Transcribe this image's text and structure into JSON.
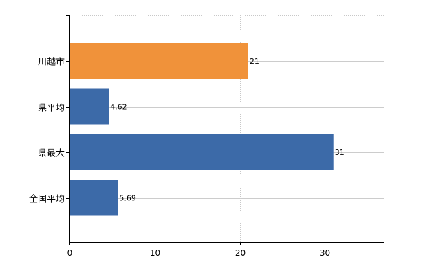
{
  "chart_data": {
    "type": "bar",
    "orientation": "horizontal",
    "categories": [
      "川越市",
      "県平均",
      "県最大",
      "全国平均"
    ],
    "values": [
      21,
      4.62,
      31,
      5.69
    ],
    "value_labels": [
      "21",
      "4.62",
      "31",
      "5.69"
    ],
    "bar_colors": [
      "#f0923a",
      "#3c6aa8",
      "#3c6aa8",
      "#3c6aa8"
    ],
    "xlim": [
      0,
      37
    ],
    "xticks": [
      0,
      10,
      20,
      30
    ],
    "xtick_labels": [
      "0",
      "10",
      "20",
      "30"
    ],
    "grid": true,
    "title": "",
    "xlabel": "",
    "ylabel": ""
  }
}
